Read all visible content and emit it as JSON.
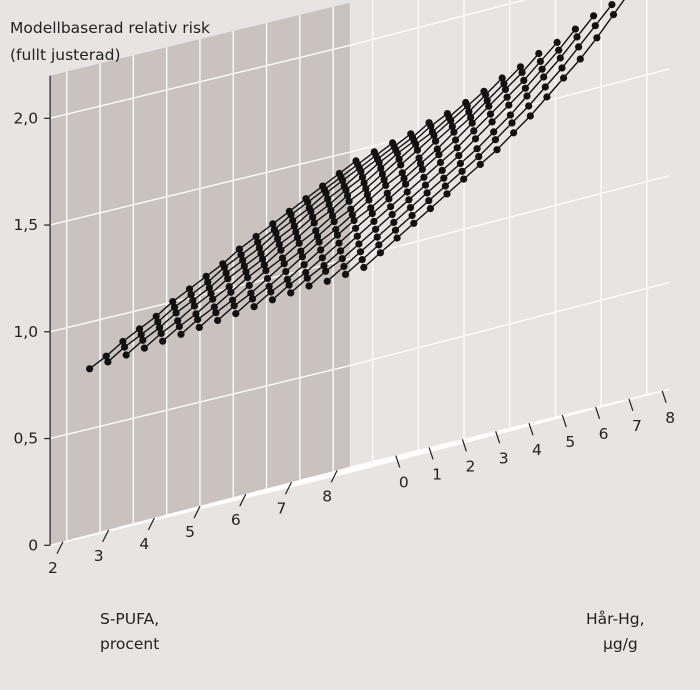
{
  "chart_data": {
    "type": "surface-3d",
    "title_lines": [
      "Modellbaserad relativ risk",
      "(fullt justerad)"
    ],
    "xlabel_lines": [
      "S-PUFA,",
      "procent"
    ],
    "ylabel_lines": [
      "Hår-Hg,",
      "µg/g"
    ],
    "z_ticks": [
      "0",
      "0,5",
      "1,0",
      "1,5",
      "2,0"
    ],
    "x_ticks": [
      "2",
      "3",
      "4",
      "5",
      "6",
      "7",
      "8"
    ],
    "y_ticks": [
      "0",
      "1",
      "2",
      "3",
      "4",
      "5",
      "6",
      "7",
      "8"
    ],
    "x_range": [
      1.5,
      8.5
    ],
    "y_range": [
      -0.5,
      8.5
    ],
    "z_range": [
      0,
      2.0
    ],
    "series_axis": "S-PUFA, procent",
    "x_along_axis": "Hår-Hg, µg/g",
    "hg_values": [
      0,
      0.5,
      1,
      1.5,
      2,
      2.5,
      3,
      3.5,
      4,
      4.5,
      5,
      5.5,
      6,
      6.5,
      7,
      7.5,
      8
    ],
    "series": [
      {
        "pufa": 8.0,
        "values": [
          0.92,
          0.97,
          1.02,
          1.07,
          1.12,
          1.17,
          1.22,
          1.27,
          1.32,
          1.38,
          1.44,
          1.51,
          1.58,
          1.65,
          1.73,
          1.82,
          1.91
        ]
      },
      {
        "pufa": 7.6,
        "values": [
          0.91,
          0.96,
          1.01,
          1.06,
          1.11,
          1.16,
          1.21,
          1.26,
          1.31,
          1.37,
          1.43,
          1.49,
          1.56,
          1.63,
          1.71,
          1.79,
          1.87
        ]
      },
      {
        "pufa": 7.2,
        "values": [
          0.9,
          0.95,
          1.0,
          1.05,
          1.1,
          1.15,
          1.2,
          1.25,
          1.3,
          1.35,
          1.41,
          1.47,
          1.54,
          1.61,
          1.68,
          1.76,
          1.84
        ]
      },
      {
        "pufa": 6.8,
        "values": [
          0.9,
          0.95,
          0.99,
          1.04,
          1.09,
          1.14,
          1.19,
          1.24,
          1.29,
          1.34,
          1.4,
          1.46,
          1.52,
          1.58,
          1.65,
          1.72,
          1.8
        ]
      },
      {
        "pufa": 6.4,
        "values": [
          0.89,
          0.94,
          0.98,
          1.03,
          1.08,
          1.13,
          1.18,
          1.23,
          1.28,
          1.33,
          1.38,
          1.44,
          1.5,
          1.56,
          1.62,
          1.69,
          1.76
        ]
      },
      {
        "pufa": 6.0,
        "values": [
          0.88,
          0.93,
          0.97,
          1.02,
          1.07,
          1.12,
          1.17,
          1.22,
          1.27,
          1.32,
          1.37,
          1.42,
          1.48,
          1.54,
          1.6,
          1.66,
          1.73
        ]
      },
      {
        "pufa": 5.6,
        "values": [
          0.87,
          0.92,
          0.96,
          1.01,
          1.06,
          1.11,
          1.16,
          1.2,
          1.25,
          1.3,
          1.35,
          1.4,
          1.46,
          1.51,
          1.57,
          1.63,
          1.69
        ]
      },
      {
        "pufa": 5.2,
        "values": [
          0.86,
          0.91,
          0.95,
          1.0,
          1.05,
          1.1,
          1.14,
          1.19,
          1.24,
          1.29,
          1.33,
          1.38,
          1.44,
          1.49,
          1.54,
          1.6,
          1.66
        ]
      },
      {
        "pufa": 4.8,
        "values": [
          0.85,
          0.9,
          0.94,
          0.99,
          1.04,
          1.08,
          1.13,
          1.18,
          1.22,
          1.27,
          1.32,
          1.37,
          1.42,
          1.47,
          1.52,
          1.57,
          1.62
        ]
      },
      {
        "pufa": 4.4,
        "values": [
          0.84,
          0.89,
          0.93,
          0.98,
          1.03,
          1.07,
          1.12,
          1.16,
          1.21,
          1.26,
          1.3,
          1.35,
          1.4,
          1.45,
          1.49,
          1.54,
          1.59
        ]
      },
      {
        "pufa": 4.0,
        "values": [
          0.83,
          0.88,
          0.92,
          0.97,
          1.02,
          1.06,
          1.11,
          1.15,
          1.2,
          1.24,
          1.29,
          1.33,
          1.38,
          1.43,
          1.47,
          1.52,
          1.56
        ]
      },
      {
        "pufa": 3.6,
        "values": [
          0.82,
          0.87,
          0.91,
          0.96,
          1.0,
          1.05,
          1.09,
          1.14,
          1.18,
          1.23,
          1.27,
          1.32,
          1.36,
          1.41,
          1.45,
          1.49,
          1.54
        ]
      },
      {
        "pufa": 3.2,
        "values": [
          0.81,
          0.86,
          0.9,
          0.95,
          0.99,
          1.04,
          1.08,
          1.12,
          1.17,
          1.21,
          1.26,
          1.3,
          1.34,
          1.39,
          1.43,
          1.47,
          1.51
        ]
      },
      {
        "pufa": 2.8,
        "values": [
          0.8,
          0.85,
          0.89,
          0.94,
          0.98,
          1.02,
          1.07,
          1.11,
          1.15,
          1.2,
          1.24,
          1.28,
          1.33,
          1.37,
          1.41,
          1.45,
          1.49
        ]
      },
      {
        "pufa": 2.4,
        "values": [
          0.79,
          0.84,
          0.88,
          0.92,
          0.97,
          1.01,
          1.05,
          1.1,
          1.14,
          1.18,
          1.22,
          1.27,
          1.31,
          1.35,
          1.39,
          1.43,
          1.47
        ]
      },
      {
        "pufa": 2.0,
        "values": [
          0.78,
          0.82,
          0.87,
          0.91,
          0.95,
          1.0,
          1.04,
          1.08,
          1.12,
          1.17,
          1.21,
          1.25,
          1.29,
          1.33,
          1.37,
          1.41,
          1.45
        ]
      }
    ],
    "grid": true,
    "colors": {
      "background": "#e8e4e3",
      "back_wall": "#cac2bf",
      "line": "#111111",
      "grid": "#ffffff"
    }
  }
}
